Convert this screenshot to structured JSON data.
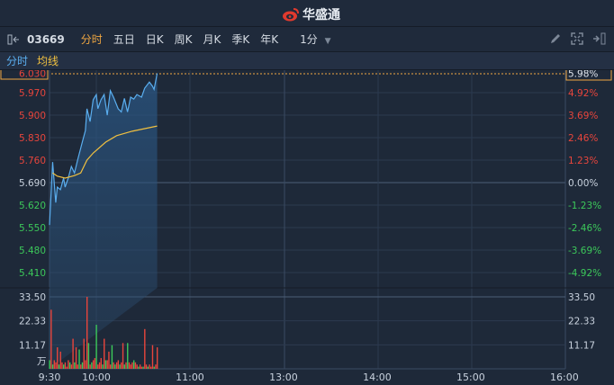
{
  "header": {
    "brand": "华盛通",
    "logo_icon": "weibo-eye-icon"
  },
  "toolbar": {
    "collapse_icon": "collapse-left-icon",
    "code": "03669",
    "tabs": [
      {
        "label": "分时",
        "active": true
      },
      {
        "label": "五日"
      },
      {
        "label": "日K"
      },
      {
        "label": "周K"
      },
      {
        "label": "月K"
      },
      {
        "label": "季K"
      },
      {
        "label": "年K"
      }
    ],
    "interval": "1分",
    "interval_icon": "caret-down-icon",
    "tools": [
      "pencil-icon",
      "fullscreen-icon",
      "expand-right-icon"
    ]
  },
  "legend": {
    "price": "分时",
    "avg": "均线"
  },
  "colors": {
    "price_line": "#5aaeef",
    "avg_line": "#f0c040",
    "up": "#e8453c",
    "down": "#3cc85a",
    "accent": "#f0a742"
  },
  "chart_data": {
    "type": "line",
    "price_axis": {
      "ticks": [
        "6.030",
        "5.970",
        "5.900",
        "5.830",
        "5.760",
        "5.690",
        "5.620",
        "5.550",
        "5.480",
        "5.410"
      ],
      "ylim": [
        5.39,
        6.03
      ],
      "prev_close": 5.69,
      "current_label": "6.030"
    },
    "pct_axis": {
      "ticks": [
        "5.98%",
        "4.92%",
        "3.69%",
        "2.46%",
        "1.23%",
        "0.00%",
        "-1.23%",
        "-2.46%",
        "-3.69%",
        "-4.92%"
      ]
    },
    "time_axis": [
      "9:30",
      "10:00",
      "11:00",
      "13:00",
      "14:00",
      "15:00",
      "16:00"
    ],
    "series": [
      {
        "key": "price",
        "points": [
          [
            "9:30",
            5.558
          ],
          [
            "9:32",
            5.754
          ],
          [
            "9:34",
            5.628
          ],
          [
            "9:35",
            5.676
          ],
          [
            "9:37",
            5.668
          ],
          [
            "9:39",
            5.704
          ],
          [
            "9:40",
            5.676
          ],
          [
            "9:42",
            5.704
          ],
          [
            "9:44",
            5.74
          ],
          [
            "9:46",
            5.72
          ],
          [
            "9:48",
            5.76
          ],
          [
            "9:51",
            5.816
          ],
          [
            "9:53",
            5.852
          ],
          [
            "9:54",
            5.92
          ],
          [
            "9:56",
            5.88
          ],
          [
            "9:58",
            5.948
          ],
          [
            "10:00",
            5.964
          ],
          [
            "10:01",
            5.92
          ],
          [
            "10:03",
            5.948
          ],
          [
            "10:05",
            5.964
          ],
          [
            "10:07",
            5.9
          ],
          [
            "10:09",
            5.976
          ],
          [
            "10:11",
            5.956
          ],
          [
            "10:14",
            5.92
          ],
          [
            "10:16",
            5.91
          ],
          [
            "10:18",
            5.952
          ],
          [
            "10:20",
            5.91
          ],
          [
            "10:22",
            5.956
          ],
          [
            "10:24",
            5.95
          ],
          [
            "10:26",
            5.964
          ],
          [
            "10:29",
            5.956
          ],
          [
            "10:31",
            5.984
          ],
          [
            "10:34",
            6.003
          ],
          [
            "10:36",
            5.99
          ],
          [
            "10:37",
            5.98
          ],
          [
            "10:39",
            6.03
          ]
        ]
      },
      {
        "key": "avg",
        "points": [
          [
            "9:32",
            5.72
          ],
          [
            "9:35",
            5.71
          ],
          [
            "9:40",
            5.704
          ],
          [
            "9:46",
            5.712
          ],
          [
            "9:50",
            5.72
          ],
          [
            "9:54",
            5.76
          ],
          [
            "9:58",
            5.782
          ],
          [
            "10:06",
            5.816
          ],
          [
            "10:13",
            5.836
          ],
          [
            "10:23",
            5.85
          ],
          [
            "10:31",
            5.858
          ],
          [
            "10:39",
            5.866
          ]
        ]
      }
    ],
    "volume": {
      "unit": "万",
      "ticks": [
        "33.50",
        "22.33",
        "11.17"
      ],
      "ylim": [
        0,
        33.5
      ],
      "start": "9:30",
      "values": [
        4,
        27.5,
        2,
        4,
        3,
        10,
        2,
        8,
        3,
        2,
        3,
        1,
        4,
        3,
        2,
        14,
        3,
        10,
        2,
        9,
        2,
        3,
        14,
        4,
        33.5,
        12,
        2,
        3,
        4,
        5,
        20.5,
        2,
        3,
        5,
        2,
        14,
        4,
        4,
        8,
        2,
        11,
        3,
        2,
        3,
        4,
        2,
        3,
        12,
        2,
        3,
        12,
        3,
        2,
        3,
        4,
        3,
        2,
        1,
        2,
        1,
        1,
        18.5,
        2,
        1,
        2,
        1,
        11,
        1,
        2,
        10
      ],
      "dirs": [
        "g",
        "r",
        "g",
        "r",
        "r",
        "r",
        "g",
        "r",
        "r",
        "g",
        "r",
        "r",
        "r",
        "g",
        "r",
        "r",
        "g",
        "r",
        "r",
        "g",
        "r",
        "g",
        "r",
        "r",
        "r",
        "g",
        "r",
        "g",
        "r",
        "r",
        "g",
        "r",
        "r",
        "r",
        "g",
        "r",
        "g",
        "r",
        "r",
        "r",
        "g",
        "r",
        "g",
        "r",
        "r",
        "g",
        "r",
        "r",
        "g",
        "r",
        "g",
        "r",
        "r",
        "r",
        "g",
        "r",
        "r",
        "g",
        "r",
        "r",
        "g",
        "r",
        "r",
        "g",
        "r",
        "r",
        "r",
        "g",
        "r",
        "r"
      ]
    }
  }
}
